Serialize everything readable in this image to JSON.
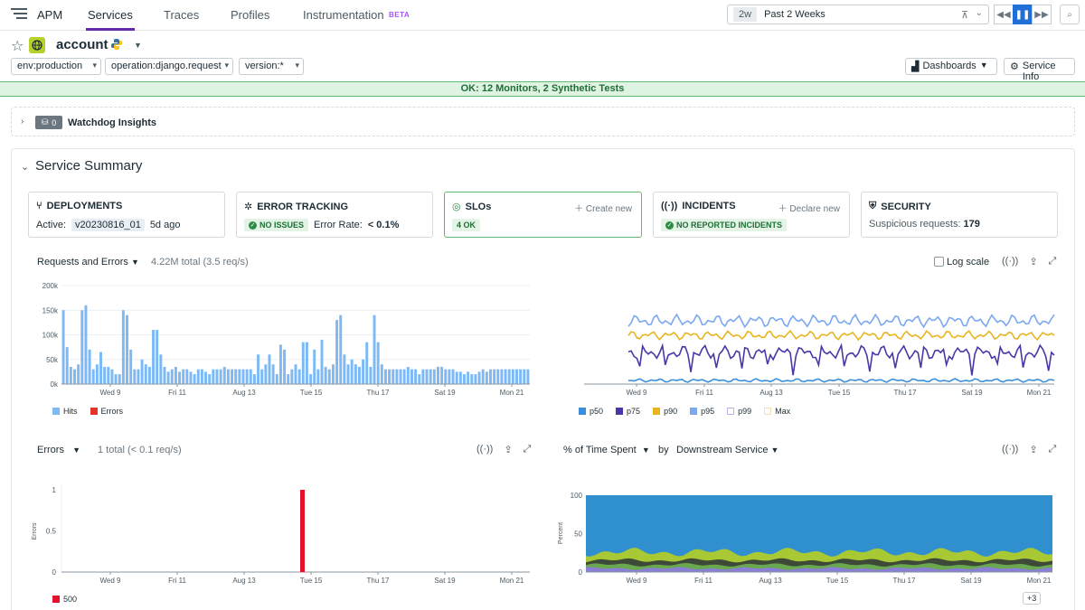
{
  "nav": {
    "apm": "APM",
    "tabs": [
      "Services",
      "Traces",
      "Profiles",
      "Instrumentation"
    ],
    "beta": "BETA",
    "time_pill": "2w",
    "time_label": "Past 2 Weeks"
  },
  "service": {
    "name": "account",
    "filters": [
      "env:production",
      "operation:django.request",
      "version:*"
    ],
    "dashboards_label": "Dashboards",
    "service_info_label": "Service Info"
  },
  "status": "OK: 12 Monitors, 2 Synthetic Tests",
  "watchdog": {
    "count": "0",
    "title": "Watchdog Insights"
  },
  "summary": {
    "title": "Service Summary",
    "cards": {
      "deployments": {
        "title": "DEPLOYMENTS",
        "active_label": "Active:",
        "version": "v20230816_01",
        "age": "5d ago"
      },
      "error_tracking": {
        "title": "ERROR TRACKING",
        "badge": "NO ISSUES",
        "rate_label": "Error Rate:",
        "rate_value": "< 0.1%"
      },
      "slos": {
        "title": "SLOs",
        "action": "Create new",
        "badge": "4 OK"
      },
      "incidents": {
        "title": "INCIDENTS",
        "action": "Declare new",
        "badge": "NO REPORTED INCIDENTS"
      },
      "security": {
        "title": "SECURITY",
        "label": "Suspicious requests:",
        "value": "179"
      }
    }
  },
  "widgets": {
    "requests": {
      "title": "Requests and Errors",
      "subtitle": "4.22M total (3.5 req/s)"
    },
    "latency": {
      "log_scale": "Log scale"
    },
    "errors": {
      "title": "Errors",
      "subtitle": "1 total (< 0.1 req/s)"
    },
    "time_spent": {
      "title": "% of Time Spent",
      "by": "by",
      "group": "Downstream Service",
      "more": "+3"
    }
  },
  "chart_data": [
    {
      "type": "bar",
      "x_ticks": [
        "Wed 9",
        "Fri 11",
        "Aug 13",
        "Tue 15",
        "Thu 17",
        "Sat 19",
        "Mon 21"
      ],
      "y_ticks": [
        "0k",
        "50k",
        "100k",
        "150k",
        "200k"
      ],
      "ylim": [
        0,
        200000
      ],
      "series": [
        {
          "name": "Hits",
          "color": "#7cb9f6",
          "values": [
            150000,
            75000,
            35000,
            30000,
            40000,
            150000,
            160000,
            70000,
            30000,
            40000,
            65000,
            35000,
            35000,
            30000,
            20000,
            20000,
            150000,
            140000,
            70000,
            30000,
            30000,
            50000,
            40000,
            35000,
            110000,
            110000,
            60000,
            35000,
            25000,
            30000,
            35000,
            25000,
            30000,
            30000,
            25000,
            20000,
            30000,
            30000,
            25000,
            20000,
            30000,
            30000,
            30000,
            35000,
            30000,
            30000,
            30000,
            30000,
            30000,
            30000,
            30000,
            20000,
            60000,
            30000,
            40000,
            60000,
            40000,
            20000,
            80000,
            70000,
            20000,
            30000,
            40000,
            30000,
            85000,
            85000,
            20000,
            70000,
            30000,
            90000,
            35000,
            30000,
            40000,
            130000,
            140000,
            60000,
            40000,
            50000,
            40000,
            35000,
            50000,
            85000,
            35000,
            140000,
            85000,
            40000,
            30000,
            30000,
            30000,
            30000,
            30000,
            30000,
            35000,
            30000,
            30000,
            20000,
            30000,
            30000,
            30000,
            30000,
            35000,
            35000,
            30000,
            30000,
            30000,
            25000,
            25000,
            20000,
            25000,
            20000,
            20000,
            25000,
            30000,
            25000,
            30000,
            30000,
            30000,
            30000,
            30000,
            30000,
            30000,
            30000,
            30000,
            30000,
            30000
          ]
        },
        {
          "name": "Errors",
          "color": "#e5332a",
          "values": []
        }
      ]
    },
    {
      "type": "line",
      "x_ticks": [
        "Wed 9",
        "Fri 11",
        "Aug 13",
        "Tue 15",
        "Thu 17",
        "Sat 19",
        "Mon 21"
      ],
      "series": [
        {
          "name": "p50",
          "color": "#3b8fdc"
        },
        {
          "name": "p75",
          "color": "#4b36a8"
        },
        {
          "name": "p90",
          "color": "#e8b520"
        },
        {
          "name": "p95",
          "color": "#7ba8ef"
        },
        {
          "name": "p99",
          "color": "#b6b2f0"
        },
        {
          "name": "Max",
          "color": "#f3e2b0"
        }
      ]
    },
    {
      "type": "bar",
      "x_ticks": [
        "Wed 9",
        "Fri 11",
        "Aug 13",
        "Tue 15",
        "Thu 17",
        "Sat 19",
        "Mon 21"
      ],
      "y_ticks": [
        "0",
        "0.5",
        "1"
      ],
      "ylabel": "Errors",
      "ylim": [
        0,
        1
      ],
      "series": [
        {
          "name": "500",
          "color": "#e5102a",
          "x_position_tick": "Tue 15",
          "values": [
            1
          ]
        }
      ]
    },
    {
      "type": "area",
      "x_ticks": [
        "Wed 9",
        "Fri 11",
        "Aug 13",
        "Tue 15",
        "Thu 17",
        "Sat 19",
        "Mon 21"
      ],
      "y_ticks": [
        "0",
        "50",
        "100"
      ],
      "ylabel": "Percent",
      "ylim": [
        0,
        100
      ]
    }
  ]
}
